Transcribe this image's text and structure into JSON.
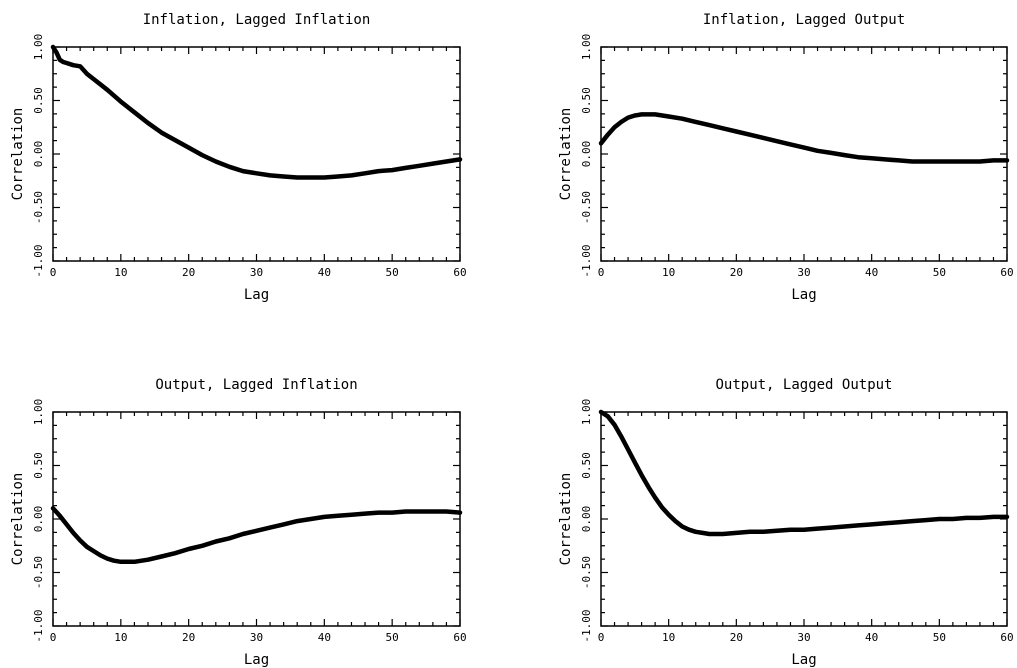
{
  "chart_data": [
    {
      "type": "line",
      "title": "Inflation, Lagged Inflation",
      "xlabel": "Lag",
      "ylabel": "Correlation",
      "xlim": [
        0,
        60
      ],
      "ylim": [
        -1.0,
        1.0
      ],
      "xticks": [
        "0",
        "10",
        "20",
        "30",
        "40",
        "50",
        "60"
      ],
      "yticks": [
        "-1.00",
        "-0.50",
        "0.00",
        "0.50",
        "1.00"
      ],
      "grid": false,
      "series": [
        {
          "x": [
            0,
            0.5,
            1,
            1.5,
            2,
            3,
            4,
            5,
            6,
            8,
            10,
            12,
            14,
            16,
            18,
            20,
            22,
            24,
            26,
            28,
            30,
            32,
            34,
            36,
            38,
            40,
            42,
            44,
            46,
            48,
            50,
            52,
            54,
            56,
            58,
            60
          ],
          "y": [
            1.0,
            0.95,
            0.88,
            0.86,
            0.85,
            0.83,
            0.82,
            0.75,
            0.7,
            0.6,
            0.49,
            0.39,
            0.29,
            0.2,
            0.13,
            0.06,
            -0.01,
            -0.07,
            -0.12,
            -0.16,
            -0.18,
            -0.2,
            -0.21,
            -0.22,
            -0.22,
            -0.22,
            -0.21,
            -0.2,
            -0.18,
            -0.16,
            -0.15,
            -0.13,
            -0.11,
            -0.09,
            -0.07,
            -0.05
          ]
        }
      ]
    },
    {
      "type": "line",
      "title": "Inflation, Lagged Output",
      "xlabel": "Lag",
      "ylabel": "Correlation",
      "xlim": [
        0,
        60
      ],
      "ylim": [
        -1.0,
        1.0
      ],
      "xticks": [
        "0",
        "10",
        "20",
        "30",
        "40",
        "50",
        "60"
      ],
      "yticks": [
        "-1.00",
        "-0.50",
        "0.00",
        "0.50",
        "1.00"
      ],
      "grid": false,
      "series": [
        {
          "x": [
            0,
            1,
            2,
            3,
            4,
            5,
            6,
            7,
            8,
            10,
            12,
            14,
            16,
            18,
            20,
            22,
            24,
            26,
            28,
            30,
            32,
            34,
            36,
            38,
            40,
            42,
            44,
            46,
            48,
            50,
            52,
            54,
            56,
            58,
            60
          ],
          "y": [
            0.1,
            0.18,
            0.25,
            0.3,
            0.34,
            0.36,
            0.37,
            0.37,
            0.37,
            0.35,
            0.33,
            0.3,
            0.27,
            0.24,
            0.21,
            0.18,
            0.15,
            0.12,
            0.09,
            0.06,
            0.03,
            0.01,
            -0.01,
            -0.03,
            -0.04,
            -0.05,
            -0.06,
            -0.07,
            -0.07,
            -0.07,
            -0.07,
            -0.07,
            -0.07,
            -0.06,
            -0.06
          ]
        }
      ]
    },
    {
      "type": "line",
      "title": "Output, Lagged Inflation",
      "xlabel": "Lag",
      "ylabel": "Correlation",
      "xlim": [
        0,
        60
      ],
      "ylim": [
        -1.0,
        1.0
      ],
      "xticks": [
        "0",
        "10",
        "20",
        "30",
        "40",
        "50",
        "60"
      ],
      "yticks": [
        "-1.00",
        "-0.50",
        "0.00",
        "0.50",
        "1.00"
      ],
      "grid": false,
      "series": [
        {
          "x": [
            0,
            1,
            2,
            3,
            4,
            5,
            6,
            7,
            8,
            9,
            10,
            11,
            12,
            14,
            16,
            18,
            20,
            22,
            24,
            26,
            28,
            30,
            32,
            34,
            36,
            38,
            40,
            42,
            44,
            46,
            48,
            50,
            52,
            54,
            56,
            58,
            60
          ],
          "y": [
            0.1,
            0.03,
            -0.05,
            -0.13,
            -0.2,
            -0.26,
            -0.3,
            -0.34,
            -0.37,
            -0.39,
            -0.4,
            -0.4,
            -0.4,
            -0.38,
            -0.35,
            -0.32,
            -0.28,
            -0.25,
            -0.21,
            -0.18,
            -0.14,
            -0.11,
            -0.08,
            -0.05,
            -0.02,
            0.0,
            0.02,
            0.03,
            0.04,
            0.05,
            0.06,
            0.06,
            0.07,
            0.07,
            0.07,
            0.07,
            0.06
          ]
        }
      ]
    },
    {
      "type": "line",
      "title": "Output, Lagged Output",
      "xlabel": "Lag",
      "ylabel": "Correlation",
      "xlim": [
        0,
        60
      ],
      "ylim": [
        -1.0,
        1.0
      ],
      "xticks": [
        "0",
        "10",
        "20",
        "30",
        "40",
        "50",
        "60"
      ],
      "yticks": [
        "-1.00",
        "-0.50",
        "0.00",
        "0.50",
        "1.00"
      ],
      "grid": false,
      "series": [
        {
          "x": [
            0,
            1,
            2,
            3,
            4,
            5,
            6,
            7,
            8,
            9,
            10,
            11,
            12,
            13,
            14,
            15,
            16,
            18,
            20,
            22,
            24,
            26,
            28,
            30,
            32,
            34,
            36,
            38,
            40,
            42,
            44,
            46,
            48,
            50,
            52,
            54,
            56,
            58,
            60
          ],
          "y": [
            1.0,
            0.96,
            0.88,
            0.77,
            0.65,
            0.53,
            0.41,
            0.3,
            0.2,
            0.11,
            0.04,
            -0.02,
            -0.07,
            -0.1,
            -0.12,
            -0.13,
            -0.14,
            -0.14,
            -0.13,
            -0.12,
            -0.12,
            -0.11,
            -0.1,
            -0.1,
            -0.09,
            -0.08,
            -0.07,
            -0.06,
            -0.05,
            -0.04,
            -0.03,
            -0.02,
            -0.01,
            0.0,
            0.0,
            0.01,
            0.01,
            0.02,
            0.02
          ]
        }
      ]
    }
  ]
}
